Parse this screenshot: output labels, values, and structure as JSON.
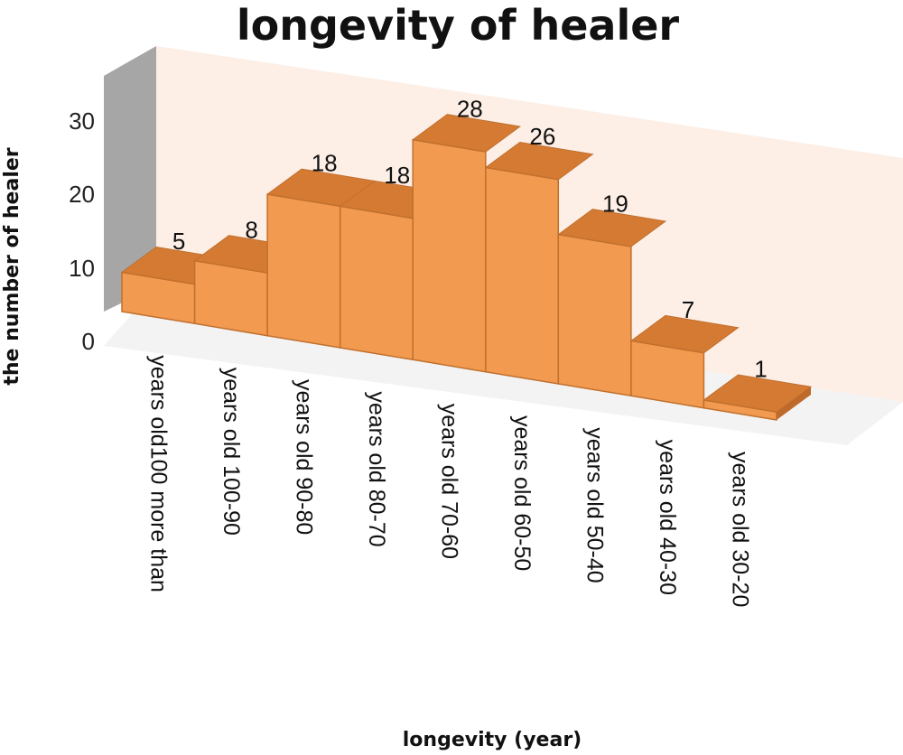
{
  "colors": {
    "bar_front": "#f29a4f",
    "bar_top": "#d47a33",
    "bar_side": "#bf6a2b",
    "bar_edge": "#c0702e",
    "back_wall": "#fdeee6",
    "side_wall": "#a6a6a6",
    "floor": "#f3f3f3"
  },
  "chart_data": {
    "type": "bar",
    "title": "longevity  of healer",
    "xlabel": "longevity (year)",
    "ylabel": "the number of healer",
    "ylim": [
      0,
      30
    ],
    "yticks": [
      "0",
      "10",
      "20",
      "30"
    ],
    "grid": false,
    "categories": [
      "years old100 more than",
      "years old 100-90",
      "years old 90-80",
      "years old 80-70",
      "years old 70-60",
      "years old 60-50",
      "years old 50-40",
      "years old 40-30",
      "years old 30-20"
    ],
    "values": [
      5,
      8,
      18,
      18,
      28,
      26,
      19,
      7,
      1
    ],
    "data_labels": [
      "5",
      "8",
      "18",
      "18",
      "28",
      "26",
      "19",
      "7",
      "1"
    ]
  }
}
